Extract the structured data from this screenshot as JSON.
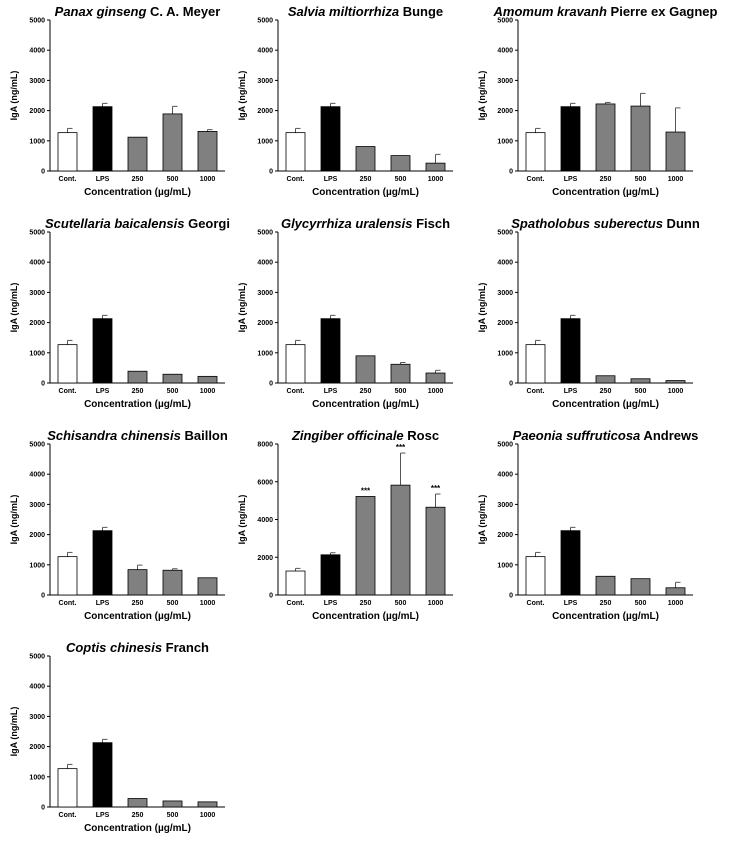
{
  "figure": {
    "y_axis_label": "IgA (ng/mL)",
    "x_axis_label": "Concentration (µg/mL)",
    "categories": [
      "Cont.",
      "LPS",
      "250",
      "500",
      "1000"
    ],
    "colors": {
      "control": "#ffffff",
      "lps": "#000000",
      "treatment": "#808080",
      "edge": "#000000"
    }
  },
  "chart_data": [
    {
      "type": "bar",
      "title_italic": "Panax ginseng",
      "title_rest": " C. A. Meyer",
      "categories": [
        "Cont.",
        "LPS",
        "250",
        "500",
        "1000"
      ],
      "values": [
        1270,
        2130,
        1120,
        1890,
        1310
      ],
      "errors": [
        140,
        110,
        0,
        250,
        60
      ],
      "ylim": [
        0,
        5000
      ],
      "yticks": [
        "0",
        "1000",
        "2000",
        "3000",
        "4000",
        "5000"
      ],
      "significance": [
        "",
        "",
        "",
        "",
        ""
      ],
      "xlabel": "Concentration (µg/mL)",
      "ylabel": "IgA (ng/mL)"
    },
    {
      "type": "bar",
      "title_italic": "Salvia miltiorrhiza",
      "title_rest": " Bunge",
      "categories": [
        "Cont.",
        "LPS",
        "250",
        "500",
        "1000"
      ],
      "values": [
        1270,
        2130,
        810,
        510,
        260
      ],
      "errors": [
        140,
        110,
        0,
        0,
        290
      ],
      "ylim": [
        0,
        5000
      ],
      "yticks": [
        "0",
        "1000",
        "2000",
        "3000",
        "4000",
        "5000"
      ],
      "significance": [
        "",
        "",
        "",
        "",
        ""
      ],
      "xlabel": "Concentration (µg/mL)",
      "ylabel": "IgA (ng/mL)"
    },
    {
      "type": "bar",
      "title_italic": "Amomum kravanh",
      "title_rest": " Pierre ex Gagnep",
      "categories": [
        "Cont.",
        "LPS",
        "250",
        "500",
        "1000"
      ],
      "values": [
        1270,
        2130,
        2220,
        2150,
        1290
      ],
      "errors": [
        140,
        110,
        50,
        420,
        800
      ],
      "ylim": [
        0,
        5000
      ],
      "yticks": [
        "0",
        "1000",
        "2000",
        "3000",
        "4000",
        "5000"
      ],
      "significance": [
        "",
        "",
        "",
        "",
        ""
      ],
      "xlabel": "Concentration (µg/mL)",
      "ylabel": "IgA (ng/mL)"
    },
    {
      "type": "bar",
      "title_italic": "Scutellaria baicalensis",
      "title_rest": " Georgi",
      "categories": [
        "Cont.",
        "LPS",
        "250",
        "500",
        "1000"
      ],
      "values": [
        1270,
        2130,
        390,
        290,
        220
      ],
      "errors": [
        140,
        110,
        0,
        0,
        0
      ],
      "ylim": [
        0,
        5000
      ],
      "yticks": [
        "0",
        "1000",
        "2000",
        "3000",
        "4000",
        "5000"
      ],
      "significance": [
        "",
        "",
        "",
        "",
        ""
      ],
      "xlabel": "Concentration (µg/mL)",
      "ylabel": "IgA (ng/mL)"
    },
    {
      "type": "bar",
      "title_italic": "Glycyrrhiza uralensis",
      "title_rest": " Fisch",
      "categories": [
        "Cont.",
        "LPS",
        "250",
        "500",
        "1000"
      ],
      "values": [
        1270,
        2130,
        900,
        620,
        330
      ],
      "errors": [
        140,
        110,
        0,
        60,
        90
      ],
      "ylim": [
        0,
        5000
      ],
      "yticks": [
        "0",
        "1000",
        "2000",
        "3000",
        "4000",
        "5000"
      ],
      "significance": [
        "",
        "",
        "",
        "",
        ""
      ],
      "xlabel": "Concentration (µg/mL)",
      "ylabel": "IgA (ng/mL)"
    },
    {
      "type": "bar",
      "title_italic": "Spatholobus suberectus",
      "title_rest": " Dunn",
      "categories": [
        "Cont.",
        "LPS",
        "250",
        "500",
        "1000"
      ],
      "values": [
        1270,
        2130,
        240,
        140,
        80
      ],
      "errors": [
        140,
        110,
        0,
        0,
        0
      ],
      "ylim": [
        0,
        5000
      ],
      "yticks": [
        "0",
        "1000",
        "2000",
        "3000",
        "4000",
        "5000"
      ],
      "significance": [
        "",
        "",
        "",
        "",
        ""
      ],
      "xlabel": "Concentration (µg/mL)",
      "ylabel": "IgA (ng/mL)"
    },
    {
      "type": "bar",
      "title_italic": "Schisandra chinensis",
      "title_rest": " Baillon",
      "categories": [
        "Cont.",
        "LPS",
        "250",
        "500",
        "1000"
      ],
      "values": [
        1270,
        2130,
        840,
        820,
        570
      ],
      "errors": [
        140,
        110,
        150,
        50,
        0
      ],
      "ylim": [
        0,
        5000
      ],
      "yticks": [
        "0",
        "1000",
        "2000",
        "3000",
        "4000",
        "5000"
      ],
      "significance": [
        "",
        "",
        "",
        "",
        ""
      ],
      "xlabel": "Concentration (µg/mL)",
      "ylabel": "IgA (ng/mL)"
    },
    {
      "type": "bar",
      "title_italic": "Zingiber officinale",
      "title_rest": " Rosc",
      "categories": [
        "Cont.",
        "LPS",
        "250",
        "500",
        "1000"
      ],
      "values": [
        1270,
        2130,
        5220,
        5820,
        4650
      ],
      "errors": [
        140,
        110,
        0,
        1700,
        700
      ],
      "ylim": [
        0,
        8000
      ],
      "yticks": [
        "0",
        "2000",
        "4000",
        "6000",
        "8000"
      ],
      "significance": [
        "",
        "",
        "***",
        "***",
        "***"
      ],
      "xlabel": "Concentration (µg/mL)",
      "ylabel": "IgA (ng/mL)"
    },
    {
      "type": "bar",
      "title_italic": "Paeonia suffruticosa",
      "title_rest": " Andrews",
      "categories": [
        "Cont.",
        "LPS",
        "250",
        "500",
        "1000"
      ],
      "values": [
        1270,
        2130,
        620,
        540,
        240
      ],
      "errors": [
        140,
        110,
        0,
        0,
        180
      ],
      "ylim": [
        0,
        5000
      ],
      "yticks": [
        "0",
        "1000",
        "2000",
        "3000",
        "4000",
        "5000"
      ],
      "significance": [
        "",
        "",
        "",
        "",
        ""
      ],
      "xlabel": "Concentration (µg/mL)",
      "ylabel": "IgA (ng/mL)"
    },
    {
      "type": "bar",
      "title_italic": "Coptis chinesis",
      "title_rest": " Franch",
      "categories": [
        "Cont.",
        "LPS",
        "250",
        "500",
        "1000"
      ],
      "values": [
        1270,
        2130,
        280,
        200,
        170
      ],
      "errors": [
        140,
        110,
        0,
        0,
        0
      ],
      "ylim": [
        0,
        5000
      ],
      "yticks": [
        "0",
        "1000",
        "2000",
        "3000",
        "4000",
        "5000"
      ],
      "significance": [
        "",
        "",
        "",
        "",
        ""
      ],
      "xlabel": "Concentration (µg/mL)",
      "ylabel": "IgA (ng/mL)"
    }
  ]
}
